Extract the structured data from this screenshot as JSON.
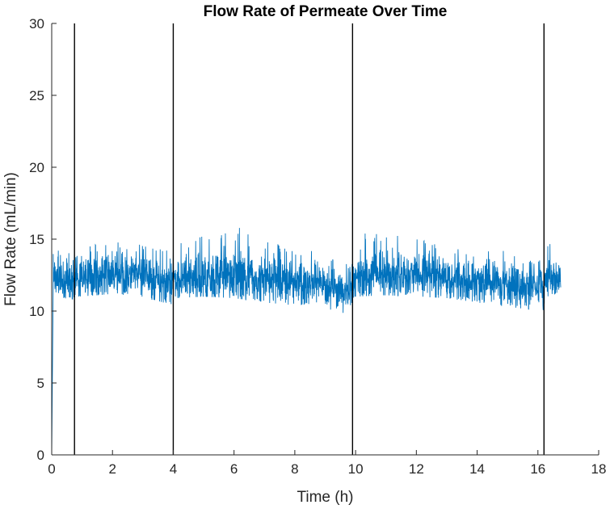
{
  "chart_data": {
    "type": "line",
    "title": "Flow Rate of Permeate Over Time",
    "xlabel": "Time (h)",
    "ylabel": "Flow Rate (mL/min)",
    "xlim": [
      0,
      18
    ],
    "ylim": [
      0,
      30
    ],
    "x_ticks": [
      0,
      2,
      4,
      6,
      8,
      10,
      12,
      14,
      16,
      18
    ],
    "y_ticks": [
      0,
      5,
      10,
      15,
      20,
      25,
      30
    ],
    "grid": false,
    "series": [
      {
        "color": "#0072BD",
        "x": [
          0,
          0.05,
          0.1,
          0.72,
          0.8,
          1.5,
          2.0,
          3.0,
          4.0,
          4.05,
          5.0,
          6.0,
          7.0,
          8.0,
          9.0,
          9.9,
          9.95,
          11.0,
          12.0,
          13.0,
          14.0,
          15.0,
          16.2,
          16.25,
          16.75
        ],
        "y": [
          0,
          12.0,
          12.2,
          11.9,
          12.3,
          12.5,
          12.6,
          12.4,
          11.8,
          12.3,
          12.4,
          12.4,
          12.2,
          12.0,
          11.7,
          11.3,
          12.4,
          12.5,
          12.5,
          12.4,
          12.1,
          11.8,
          11.5,
          12.4,
          12.4
        ],
        "band_min": [
          0,
          10.9,
          11.0,
          10.8,
          11.0,
          11.1,
          11.2,
          11.0,
          10.4,
          10.9,
          11.0,
          10.9,
          10.6,
          10.4,
          10.2,
          9.7,
          11.0,
          11.1,
          11.0,
          10.9,
          10.6,
          10.3,
          10.0,
          10.9,
          11.0
        ],
        "band_max": [
          0,
          14.0,
          14.6,
          14.4,
          14.9,
          14.8,
          14.8,
          14.7,
          14.2,
          14.6,
          15.3,
          16.0,
          14.9,
          14.4,
          14.0,
          13.5,
          15.4,
          15.4,
          15.0,
          14.8,
          14.5,
          14.2,
          13.5,
          14.8,
          14.4
        ]
      }
    ],
    "vertical_lines": {
      "color": "#000000",
      "x": [
        0.75,
        4.0,
        9.9,
        16.2
      ]
    }
  }
}
